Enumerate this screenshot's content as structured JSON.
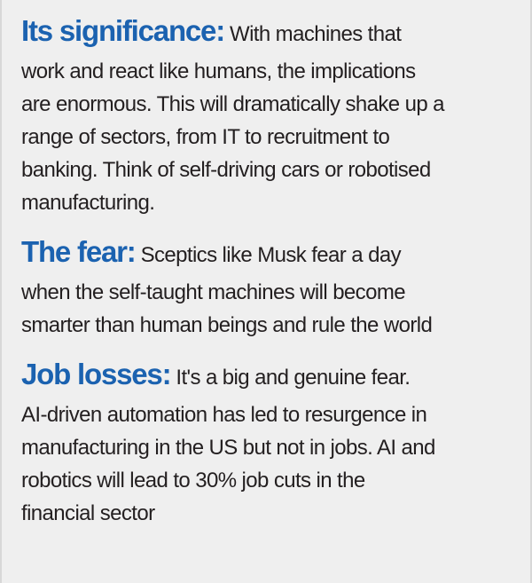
{
  "sections": [
    {
      "heading": "Its significance:",
      "lines": [
        "With machines that",
        "work and react like humans, the implications",
        "are enormous. This will dramatically shake up a",
        "range of sectors, from IT to recruitment to",
        "banking. Think of self-driving cars or robotised",
        "manufacturing."
      ]
    },
    {
      "heading": "The fear:",
      "lines": [
        "Sceptics like Musk fear a day",
        "when the self-taught machines will become",
        "smarter than human beings and rule the world"
      ]
    },
    {
      "heading": "Job losses:",
      "lines": [
        "It's a big and genuine fear.",
        "AI-driven automation has led to resurgence in",
        "manufacturing in the US but not in jobs. AI and",
        "robotics will lead to 30% job cuts in the",
        "financial sector"
      ]
    }
  ]
}
